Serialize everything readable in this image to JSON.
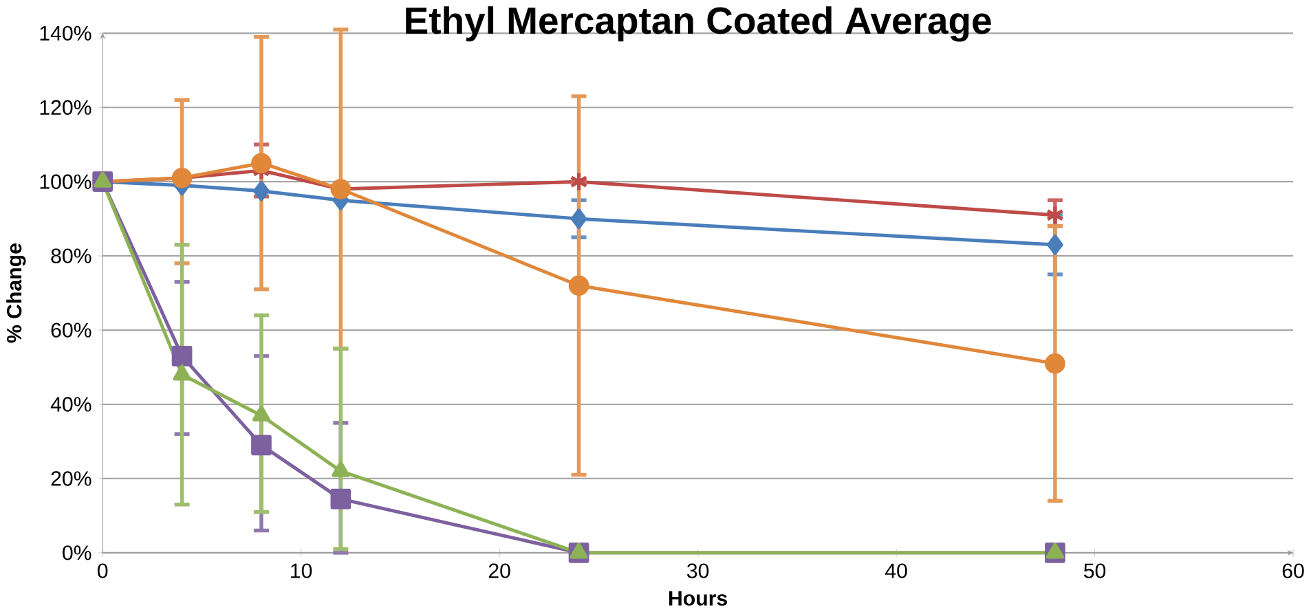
{
  "chart_data": {
    "type": "line",
    "title": "Ethyl Mercaptan Coated Average",
    "xlabel": "Hours",
    "ylabel": "% Change",
    "xlim": [
      0,
      60
    ],
    "xticks": [
      0,
      10,
      20,
      30,
      40,
      50,
      60
    ],
    "ylim": [
      0,
      140
    ],
    "yticks": [
      {
        "value": 0,
        "label": "0%"
      },
      {
        "value": 20,
        "label": "20%"
      },
      {
        "value": 40,
        "label": "40%"
      },
      {
        "value": 60,
        "label": "60%"
      },
      {
        "value": 80,
        "label": "80%"
      },
      {
        "value": 100,
        "label": "100%"
      },
      {
        "value": 120,
        "label": "120%"
      },
      {
        "value": 140,
        "label": "140%"
      }
    ],
    "grid": "y",
    "x": [
      0,
      4,
      8,
      12,
      24,
      48
    ],
    "series": [
      {
        "color": "#4a7ebb",
        "marker": "diamond",
        "values": [
          100,
          99,
          97.5,
          95,
          90,
          83
        ],
        "errors": [
          null,
          null,
          null,
          null,
          [
            85,
            95
          ],
          [
            75,
            91
          ]
        ]
      },
      {
        "color": "#be4b48",
        "marker": "cross",
        "values": [
          100,
          101,
          103,
          98,
          100,
          91
        ],
        "errors": [
          null,
          null,
          [
            96,
            110
          ],
          null,
          null,
          [
            88,
            95
          ]
        ]
      },
      {
        "color": "#e0873a",
        "marker": "circle",
        "values": [
          100,
          101,
          105,
          98,
          72,
          51
        ],
        "errors": [
          null,
          [
            78,
            122
          ],
          [
            71,
            139
          ],
          [
            55,
            141
          ],
          [
            21,
            123
          ],
          [
            14,
            88
          ]
        ]
      },
      {
        "color": "#7d60a0",
        "marker": "square",
        "values": [
          100,
          53,
          29,
          14.5,
          0,
          0
        ],
        "errors": [
          null,
          [
            32,
            73
          ],
          [
            6,
            53
          ],
          [
            0,
            35
          ],
          null,
          null
        ]
      },
      {
        "color": "#8db255",
        "marker": "triangle",
        "values": [
          100,
          48,
          37,
          22,
          0,
          0
        ],
        "errors": [
          null,
          [
            13,
            83
          ],
          [
            11,
            64
          ],
          [
            1,
            55
          ],
          null,
          null
        ]
      }
    ]
  }
}
